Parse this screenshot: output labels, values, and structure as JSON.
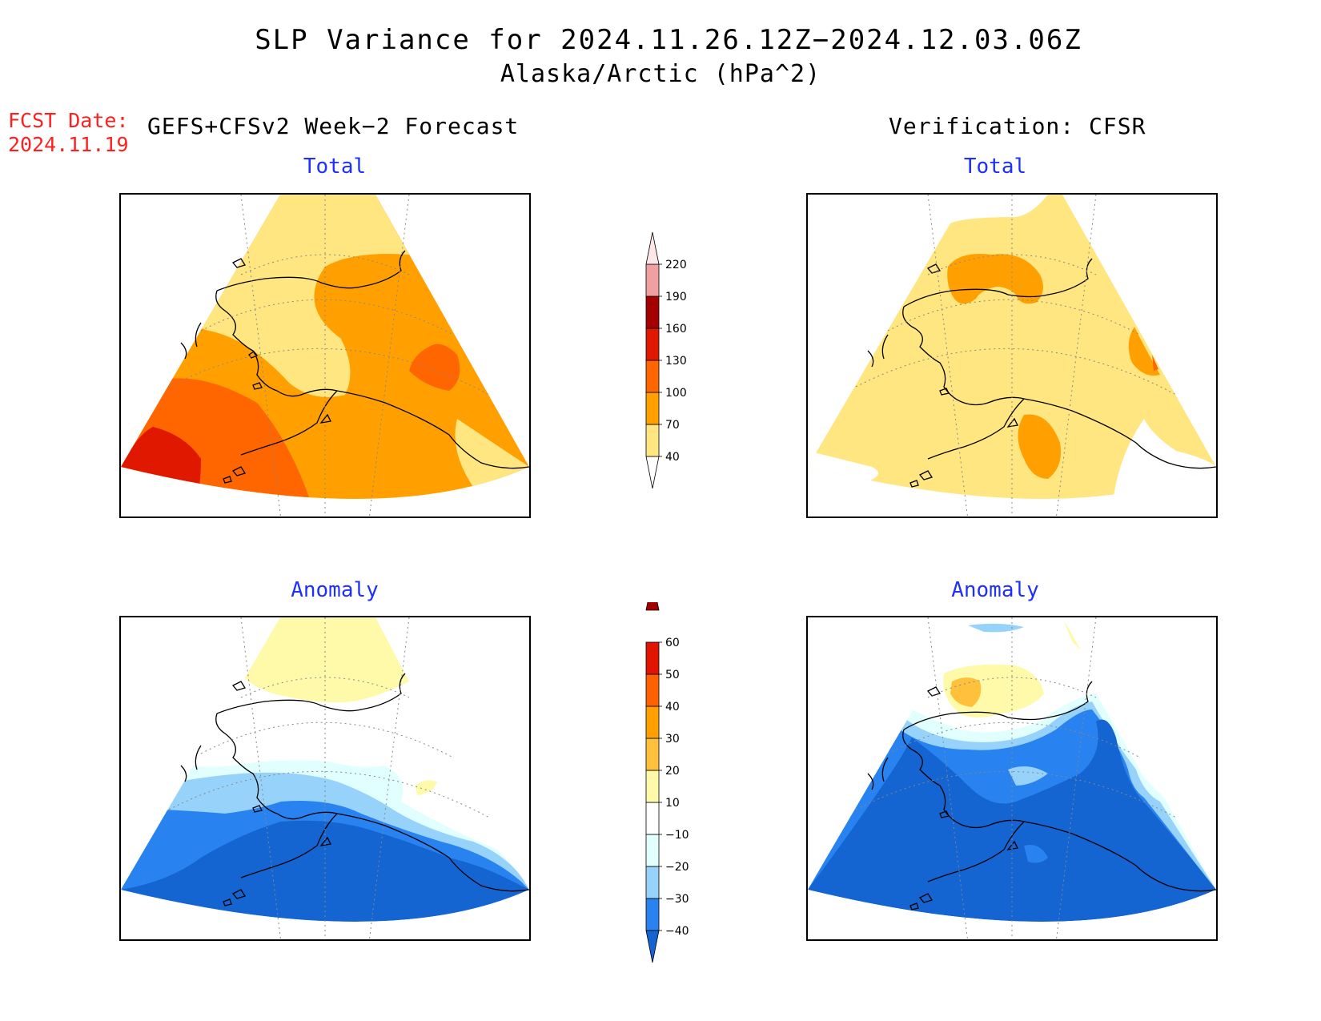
{
  "header": {
    "title": "SLP Variance for 2024.11.26.12Z−2024.12.03.06Z",
    "subtitle": "Alaska/Arctic (hPa^2)",
    "fcst_label": "FCST Date:",
    "fcst_date": "2024.11.19",
    "left_heading": "GEFS+CFSv2 Week−2 Forecast",
    "right_heading": "Verification: CFSR"
  },
  "panels": {
    "forecast_total": "Total",
    "verification_total": "Total",
    "forecast_anomaly": "Anomaly",
    "verification_anomaly": "Anomaly"
  },
  "colorbars": {
    "total": {
      "levels": [
        "40",
        "70",
        "100",
        "130",
        "160",
        "190",
        "220"
      ],
      "colors": [
        "#ffe680",
        "#ffa000",
        "#ff6600",
        "#e11800",
        "#a50000",
        "#f0a0a0",
        "#fde6e6"
      ]
    },
    "anomaly": {
      "levels": [
        "−40",
        "−30",
        "−20",
        "−10",
        "10",
        "20",
        "30",
        "40",
        "50",
        "60"
      ],
      "colors": [
        "#1464d2",
        "#2882f0",
        "#96d2fa",
        "#e1ffff",
        "#ffffff",
        "#fffaaa",
        "#ffc03c",
        "#ffa000",
        "#ff6000",
        "#e11400",
        "#a50000"
      ]
    }
  }
}
